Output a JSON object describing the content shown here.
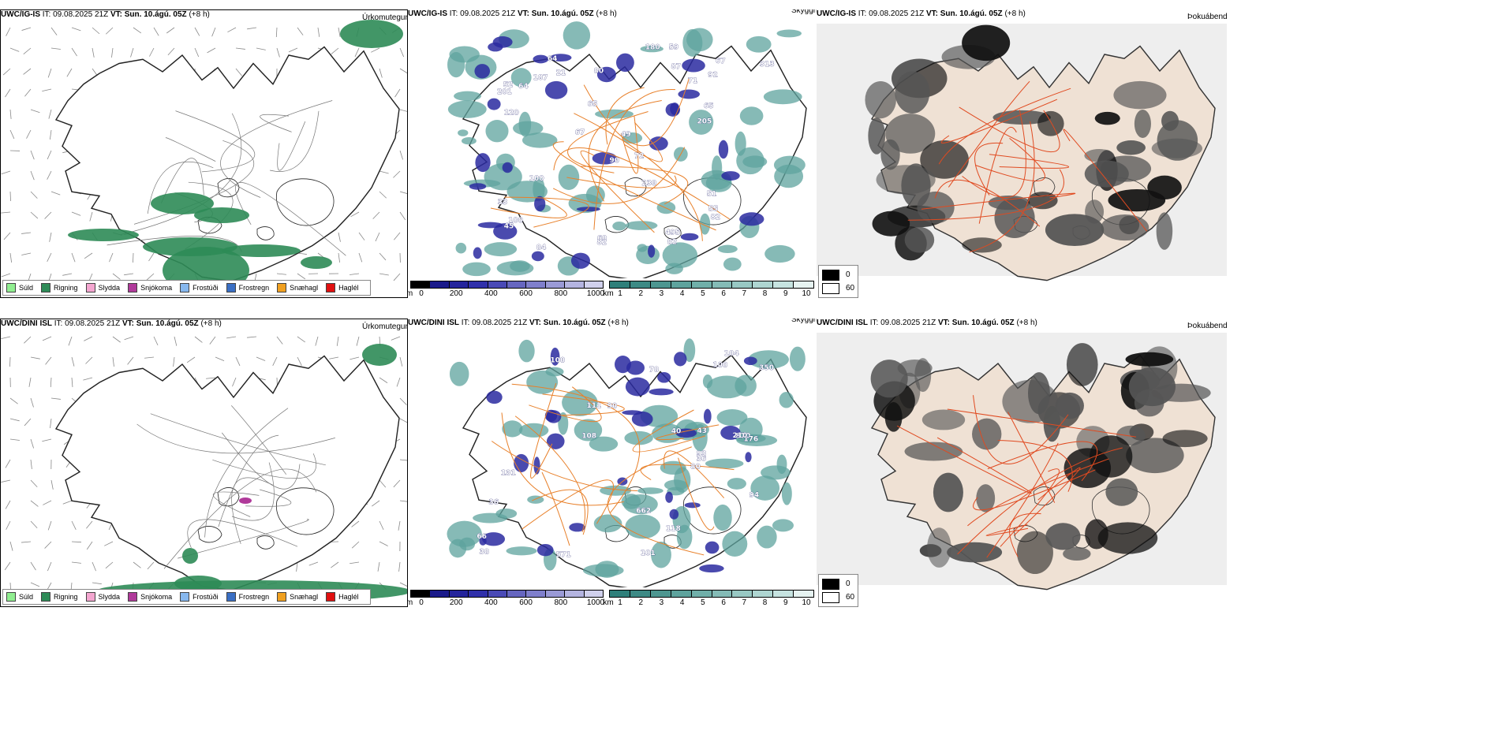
{
  "rows": [
    {
      "model": "UWC/IG-IS",
      "it_label": "IT:",
      "it_value": "09.08.2025 21Z",
      "vt_label": "VT:",
      "vt_value": "Sun. 10.ágú. 05Z",
      "lead": "(+8 h)",
      "precip_numbers": [
        "64",
        "65",
        "82",
        "201",
        "92",
        "45",
        "82",
        "90",
        "87",
        "71",
        "100",
        "59",
        "100",
        "120",
        "60",
        "72",
        "205",
        "21",
        "52",
        "65",
        "180",
        "84",
        "67",
        "495",
        "187",
        "313",
        "67",
        "80",
        "230",
        "82",
        "64",
        "49",
        "55",
        "51",
        "33"
      ],
      "labels": {
        "precip_type": "Úrkomutegund",
        "visibility": "Skyggni",
        "cloud_base": "Þokuábendi"
      }
    },
    {
      "model": "UWC/DINI ISL",
      "it_label": "IT:",
      "it_value": "09.08.2025 21Z",
      "vt_label": "VT:",
      "vt_value": "Sun. 10.ágú. 05Z",
      "lead": "(+8 h)",
      "precip_numbers": [
        "90",
        "43",
        "111",
        "80",
        "100",
        "38",
        "40",
        "350",
        "870",
        "78",
        "662",
        "571",
        "104",
        "176",
        "101",
        "93",
        "108",
        "36",
        "118",
        "100",
        "131",
        "210",
        "94",
        "66",
        "36"
      ],
      "labels": {
        "precip_type": "Úrkomutegund",
        "visibility": "Skyggni",
        "cloud_base": "Þokuábendi"
      }
    }
  ],
  "precip_legend": [
    {
      "label": "Súld",
      "color": "#90ee90"
    },
    {
      "label": "Rigning",
      "color": "#2e8b57"
    },
    {
      "label": "Slydda",
      "color": "#f4a6d0"
    },
    {
      "label": "Snjókoma",
      "color": "#b03a9a"
    },
    {
      "label": "Frostúði",
      "color": "#87b8ee"
    },
    {
      "label": "Frostregn",
      "color": "#3a6fc4"
    },
    {
      "label": "Snæhagl",
      "color": "#f0a020"
    },
    {
      "label": "Haglél",
      "color": "#e01010"
    }
  ],
  "height_bar": {
    "unit": "m",
    "ticks": [
      "0",
      "200",
      "400",
      "600",
      "800",
      "1000"
    ],
    "colors": [
      "#000000",
      "#1a1a8a",
      "#24249c",
      "#3030aa",
      "#4a4ab6",
      "#6666c0",
      "#7f7fcc",
      "#9a9ad6",
      "#b4b4e0",
      "#d0d0ec"
    ]
  },
  "vis_bar": {
    "unit": "km",
    "ticks": [
      "1",
      "2",
      "3",
      "4",
      "5",
      "6",
      "7",
      "8",
      "9",
      "10"
    ],
    "colors": [
      "#2f7f7a",
      "#3d8a85",
      "#4d9690",
      "#5ea39d",
      "#70afa9",
      "#84bbb6",
      "#98c8c3",
      "#aed5d1",
      "#c6e3e0",
      "#e6f3f1"
    ]
  },
  "fog_legend": [
    {
      "label": "0",
      "color": "#000000"
    },
    {
      "label": "60",
      "color": "#ffffff"
    }
  ]
}
